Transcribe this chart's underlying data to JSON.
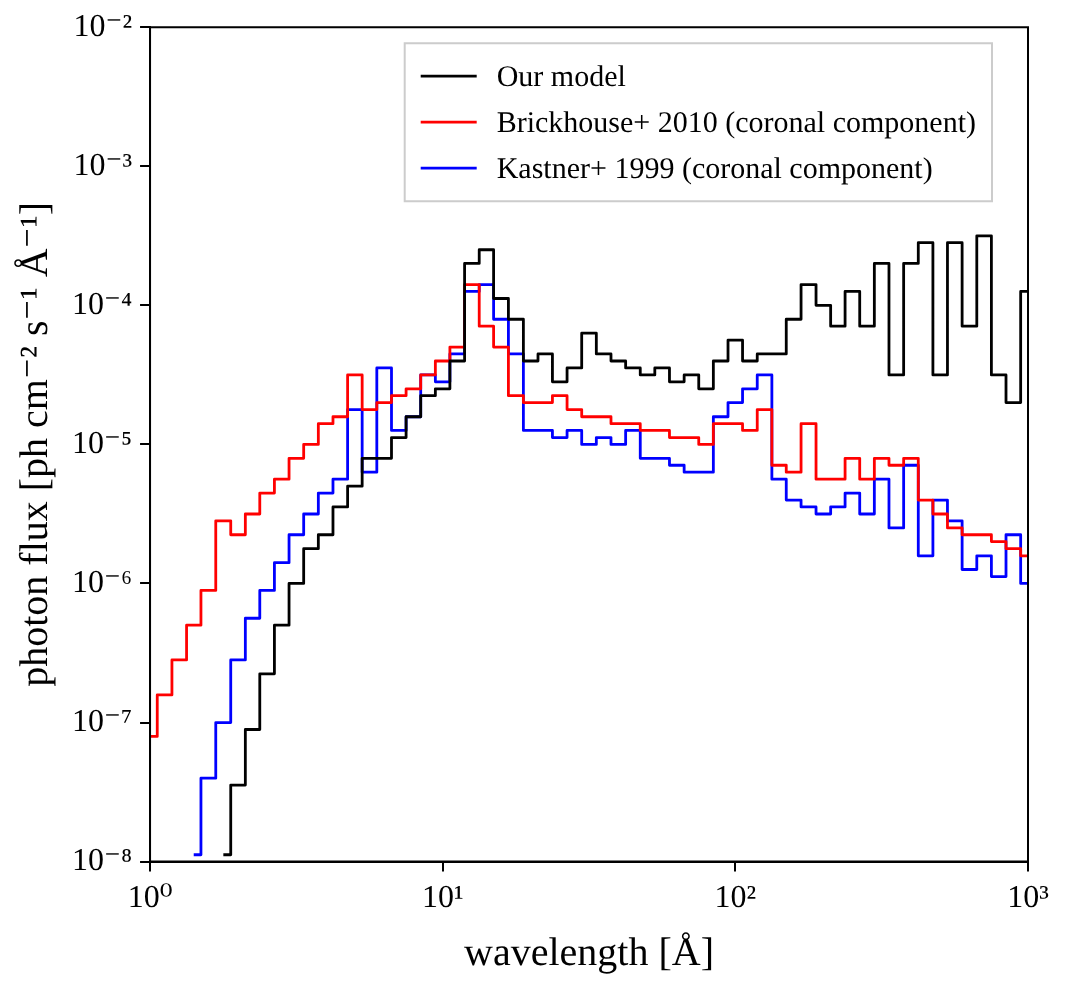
{
  "chart_data": {
    "type": "step",
    "xlabel": "wavelength [Å]",
    "ylabel": "photon flux [ph cm⁻² s⁻¹ Å⁻¹]",
    "log": "xy",
    "grid": false,
    "legend": "top right",
    "marker": "none",
    "line_style": "solid",
    "xlim": [
      1,
      1000
    ],
    "ylim": [
      1e-08,
      0.01
    ],
    "xticks": [
      {
        "value": 1,
        "label": "10⁰"
      },
      {
        "value": 10,
        "label": "10¹"
      },
      {
        "value": 100,
        "label": "10²"
      },
      {
        "value": 1000,
        "label": "10³"
      }
    ],
    "yticks": [
      {
        "value": 1e-08,
        "label": "10⁻⁸"
      },
      {
        "value": 1e-07,
        "label": "10⁻⁷"
      },
      {
        "value": 1e-06,
        "label": "10⁻⁶"
      },
      {
        "value": 1e-05,
        "label": "10⁻⁵"
      },
      {
        "value": 0.0001,
        "label": "10⁻⁴"
      },
      {
        "value": 0.001,
        "label": "10⁻³"
      },
      {
        "value": 0.01,
        "label": "10⁻²"
      }
    ],
    "x": [
      1,
      1.12,
      1.26,
      1.41,
      1.58,
      1.78,
      2.0,
      2.24,
      2.51,
      2.82,
      3.16,
      3.55,
      3.98,
      4.47,
      5.01,
      5.62,
      6.31,
      7.08,
      7.94,
      8.91,
      10,
      11.2,
      12.6,
      14.1,
      15.8,
      17.8,
      20,
      22.4,
      25.1,
      28.2,
      31.6,
      35.5,
      39.8,
      44.7,
      50.1,
      56.2,
      63.1,
      70.8,
      79.4,
      89.1,
      100,
      112,
      126,
      141,
      158,
      178,
      200,
      224,
      251,
      282,
      316,
      355,
      398,
      447,
      501,
      562,
      631,
      708,
      794,
      891,
      1000
    ],
    "series": [
      {
        "name": "Our model",
        "color": "#000000",
        "values": [
          null,
          null,
          null,
          null,
          null,
          1.12e-08,
          3.55e-08,
          8.91e-08,
          2.24e-07,
          5.01e-07,
          1e-06,
          1.78e-06,
          2.24e-06,
          3.55e-06,
          5.01e-06,
          7.94e-06,
          7.94e-06,
          1.12e-05,
          1.58e-05,
          2.24e-05,
          2.51e-05,
          3.98e-05,
          0.0002,
          0.000251,
          0.000112,
          7.94e-05,
          3.98e-05,
          4.47e-05,
          2.82e-05,
          3.55e-05,
          6.31e-05,
          4.47e-05,
          3.98e-05,
          3.55e-05,
          3.16e-05,
          3.55e-05,
          2.82e-05,
          3.16e-05,
          2.51e-05,
          3.98e-05,
          5.62e-05,
          3.98e-05,
          4.47e-05,
          4.47e-05,
          7.94e-05,
          0.000141,
          0.0001,
          7.08e-05,
          0.000126,
          7.08e-05,
          0.0002,
          3.16e-05,
          0.0002,
          0.000282,
          3.16e-05,
          0.000282,
          7.08e-05,
          0.000316,
          3.16e-05,
          2e-05,
          0.000126
        ]
      },
      {
        "name": "Brickhouse+ 2010 (coronal component)",
        "color": "#ff0000",
        "values": [
          7.94e-08,
          1.58e-07,
          2.82e-07,
          5.01e-07,
          8.91e-07,
          2.82e-06,
          2.24e-06,
          3.16e-06,
          4.47e-06,
          5.62e-06,
          7.94e-06,
          1e-05,
          1.41e-05,
          1.58e-05,
          3.16e-05,
          1.78e-05,
          2e-05,
          2.24e-05,
          2.51e-05,
          3.16e-05,
          3.98e-05,
          5.01e-05,
          0.000141,
          7.08e-05,
          5.01e-05,
          2.24e-05,
          2e-05,
          2e-05,
          2.24e-05,
          1.78e-05,
          1.58e-05,
          1.58e-05,
          1.41e-05,
          1.41e-05,
          1.26e-05,
          1.26e-05,
          1.12e-05,
          1.12e-05,
          1e-05,
          1.41e-05,
          1.41e-05,
          1.26e-05,
          1.78e-05,
          7.08e-06,
          6.31e-06,
          1.41e-05,
          5.62e-06,
          5.62e-06,
          7.94e-06,
          5.62e-06,
          7.94e-06,
          7.08e-06,
          7.94e-06,
          3.98e-06,
          3.16e-06,
          2.51e-06,
          2.24e-06,
          2.24e-06,
          2e-06,
          1.78e-06,
          1.58e-06
        ]
      },
      {
        "name": "Kastner+ 1999 (coronal component)",
        "color": "#0000ff",
        "values": [
          null,
          null,
          null,
          1.12e-08,
          3.98e-08,
          1e-07,
          2.82e-07,
          5.62e-07,
          8.91e-07,
          1.41e-06,
          2.24e-06,
          3.16e-06,
          4.47e-06,
          5.62e-06,
          1.78e-05,
          6.31e-06,
          3.55e-05,
          1.26e-05,
          1.58e-05,
          3.16e-05,
          2.82e-05,
          4.47e-05,
          0.000126,
          0.000141,
          7.94e-05,
          4.47e-05,
          1.26e-05,
          1.26e-05,
          1.12e-05,
          1.26e-05,
          1e-05,
          1.12e-05,
          1e-05,
          1.26e-05,
          7.94e-06,
          7.94e-06,
          7.08e-06,
          6.31e-06,
          6.31e-06,
          1.58e-05,
          2e-05,
          2.51e-05,
          3.16e-05,
          5.62e-06,
          3.98e-06,
          3.55e-06,
          3.16e-06,
          3.55e-06,
          4.47e-06,
          3.16e-06,
          5.62e-06,
          2.51e-06,
          7.08e-06,
          1.58e-06,
          3.98e-06,
          2.82e-06,
          1.26e-06,
          1.58e-06,
          1.12e-06,
          2.24e-06,
          1e-06
        ]
      }
    ]
  }
}
